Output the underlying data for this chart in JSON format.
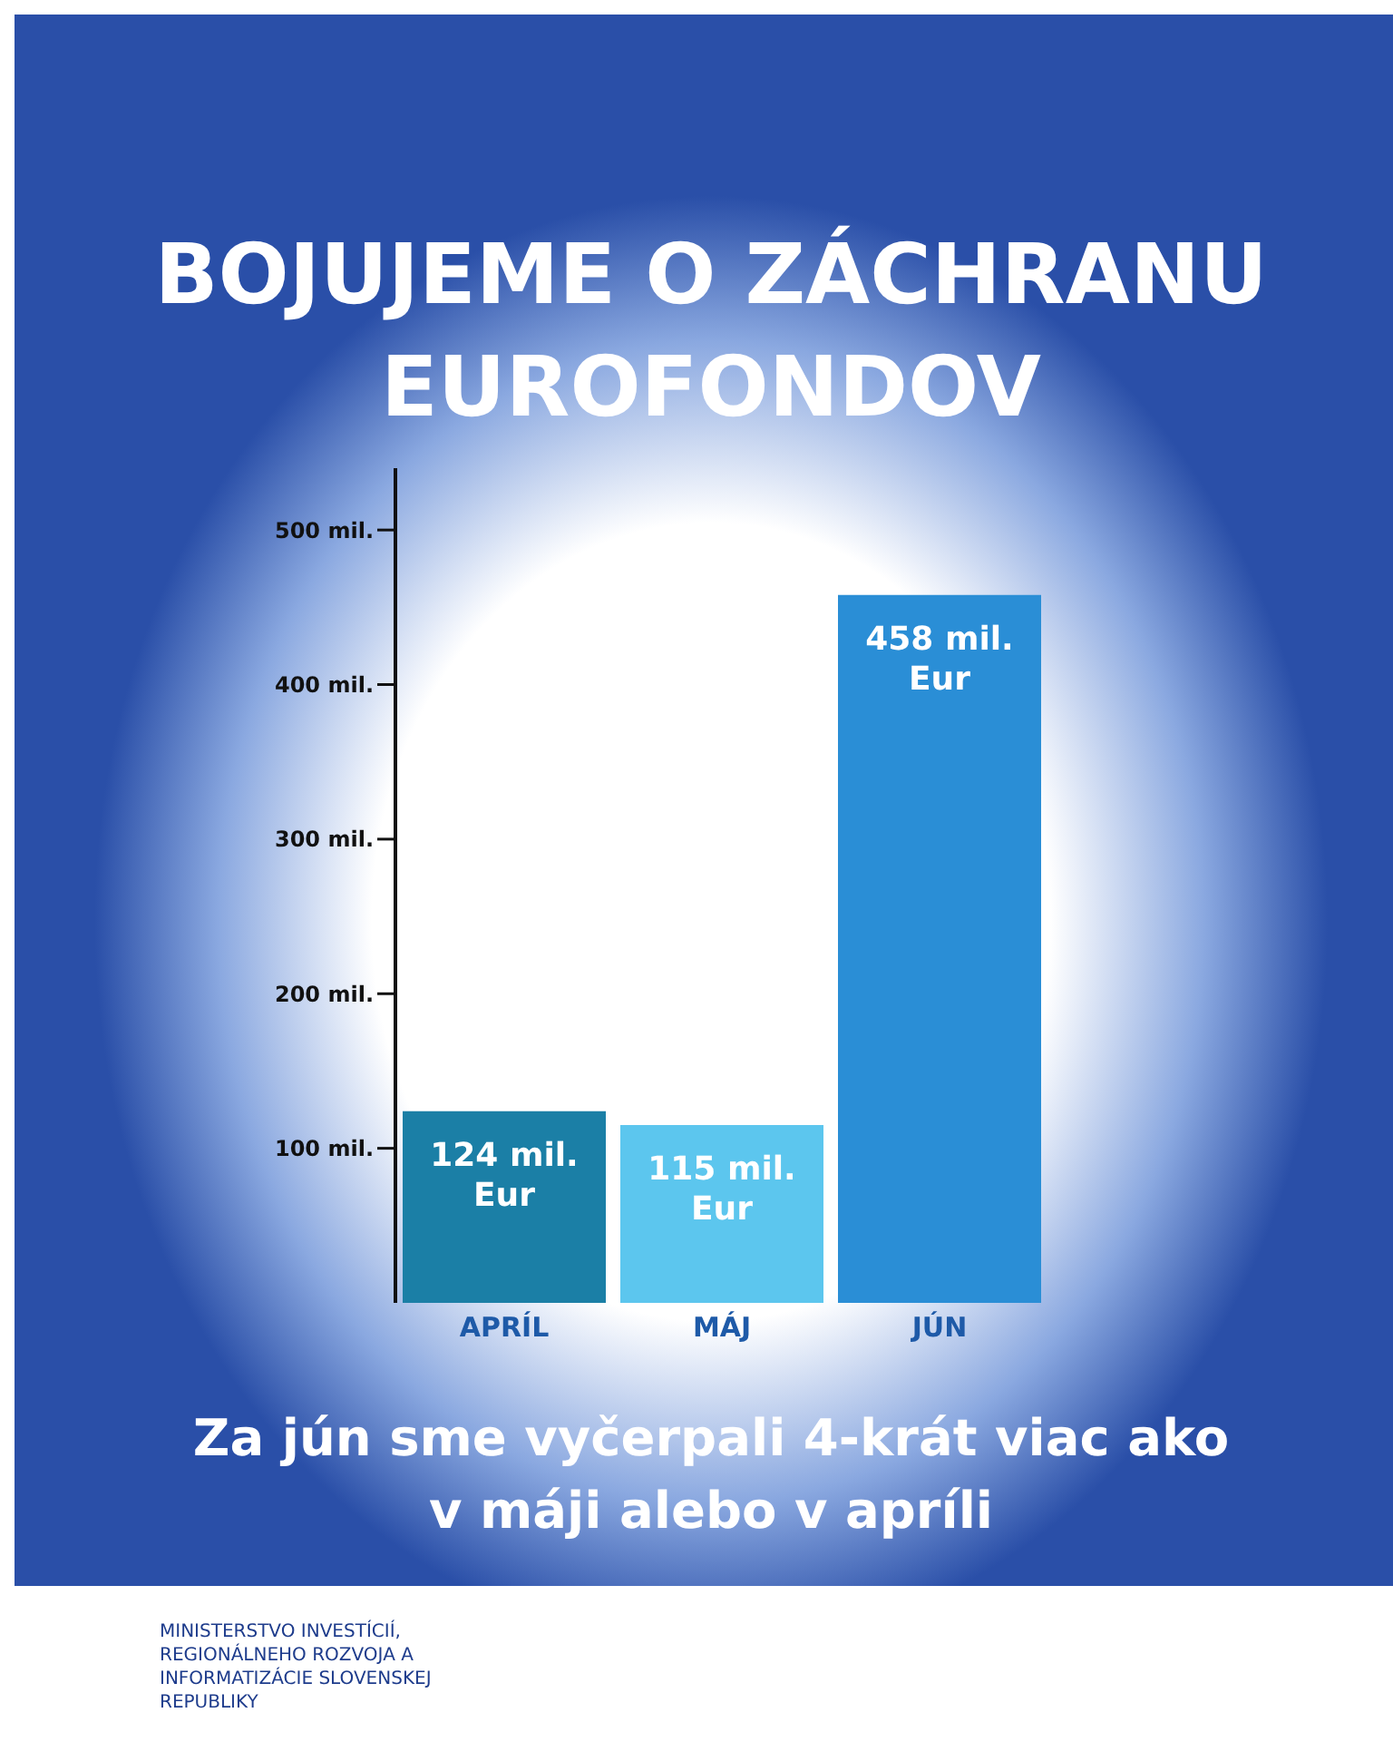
{
  "chart_data": {
    "type": "bar",
    "title": "BOJUJEME O ZÁCHRANU EUROFONDOV",
    "categories": [
      "APRÍL",
      "MÁJ",
      "JÚN"
    ],
    "values": [
      124,
      115,
      458
    ],
    "colors": [
      "#1b7fa6",
      "#5cc6ee",
      "#2a8ed6"
    ],
    "value_labels": [
      "124 mil. Eur",
      "115 mil. Eur",
      "458 mil. Eur"
    ],
    "ylim": [
      0,
      540
    ],
    "yticks": [
      {
        "value": 100,
        "label": "100 mil."
      },
      {
        "value": 200,
        "label": "200 mil."
      },
      {
        "value": 300,
        "label": "300 mil."
      },
      {
        "value": 400,
        "label": "400 mil."
      },
      {
        "value": 500,
        "label": "500 mil."
      }
    ],
    "annotations": [
      "Za jún sme vyčerpali 4-krát viac ako v máji alebo v apríli",
      "MINISTERSTVO INVESTÍCIÍ, REGIONÁLNEHO ROZVOJA A INFORMATIZÁCIE SLOVENSKEJ REPUBLIKY"
    ]
  }
}
